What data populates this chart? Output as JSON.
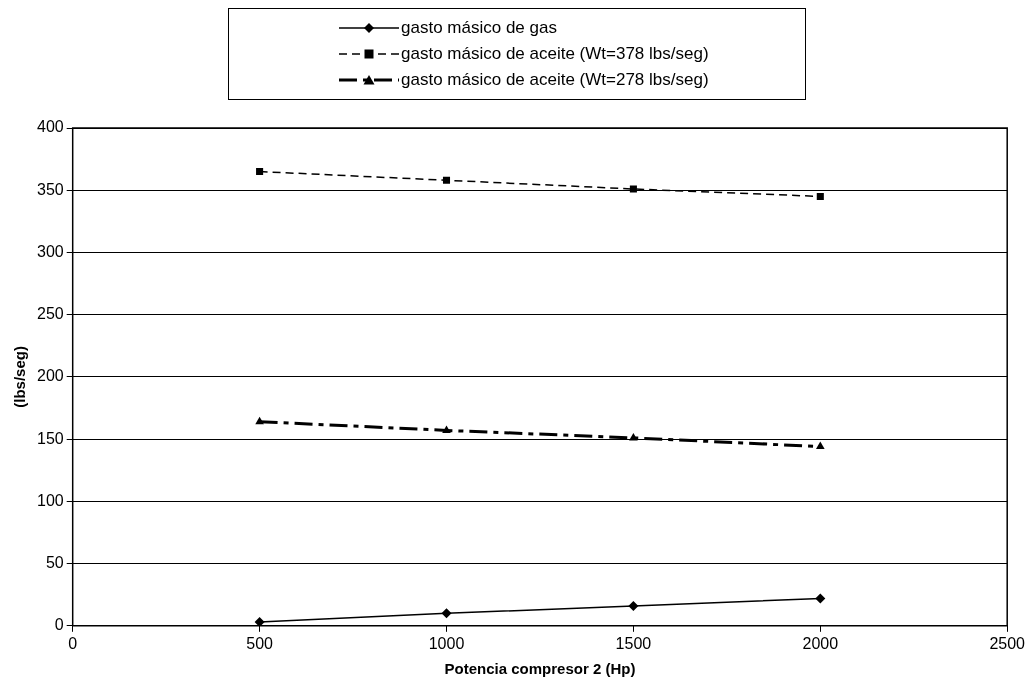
{
  "chart_data": {
    "type": "line",
    "xlabel": "Potencia compresor 2 (Hp)",
    "ylabel": "(lbs/seg)",
    "x": [
      500,
      1000,
      1500,
      2000
    ],
    "series": [
      {
        "name": "gasto másico de gas",
        "color": "#000000",
        "values": [
          3,
          10,
          16,
          22
        ],
        "marker": "diamond",
        "line_style": "solid"
      },
      {
        "name": "gasto másico de aceite (Wt=378 lbs/seg)",
        "color": "#000000",
        "values": [
          365,
          358,
          351,
          345
        ],
        "marker": "square",
        "line_style": "dashed"
      },
      {
        "name": "gasto másico de aceite (Wt=278 lbs/seg)",
        "color": "#000000",
        "values": [
          164,
          157,
          151,
          144
        ],
        "marker": "triangle",
        "line_style": "dashdot"
      }
    ],
    "xlim": [
      0,
      2500
    ],
    "xticks": [
      0,
      500,
      1000,
      1500,
      2000,
      2500
    ],
    "ylim": [
      0,
      400
    ],
    "yticks": [
      0,
      50,
      100,
      150,
      200,
      250,
      300,
      350,
      400
    ],
    "grid": "y",
    "legend": "top"
  }
}
